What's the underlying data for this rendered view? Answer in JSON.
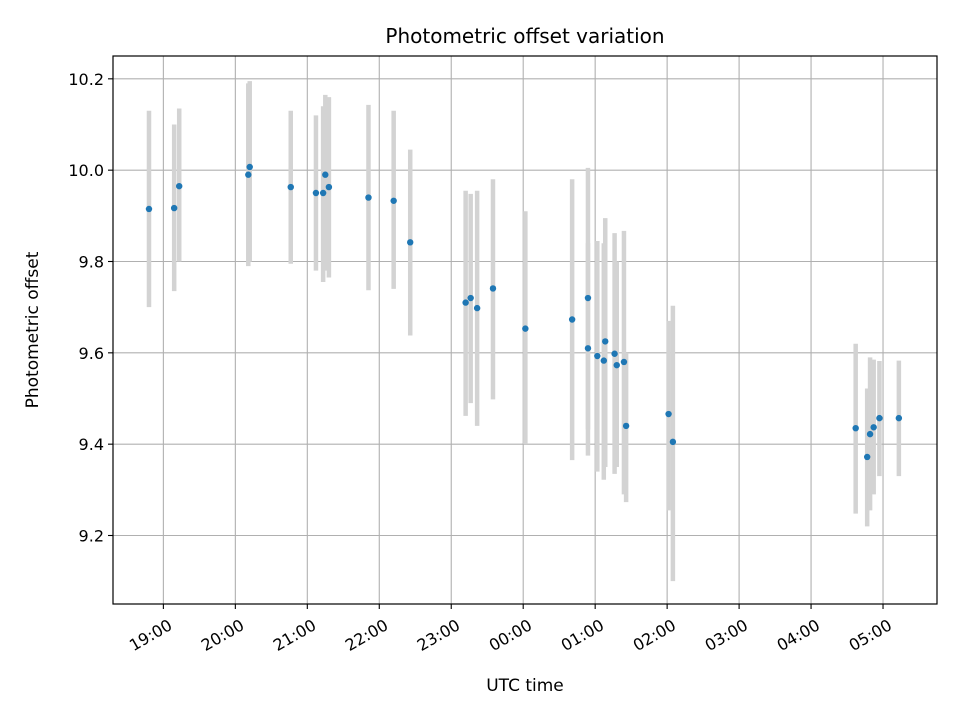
{
  "chart_data": {
    "type": "scatter",
    "title": "Photometric offset variation",
    "xlabel": "UTC time",
    "ylabel": "Photometric offset",
    "grid": true,
    "x_unit": "UTC time (hours after 19:00 on first night)",
    "xlim_hours": [
      -0.7,
      10.75
    ],
    "ylim": [
      9.05,
      10.25
    ],
    "x_ticks": [
      {
        "t": 0,
        "label": "19:00"
      },
      {
        "t": 1,
        "label": "20:00"
      },
      {
        "t": 2,
        "label": "21:00"
      },
      {
        "t": 3,
        "label": "22:00"
      },
      {
        "t": 4,
        "label": "23:00"
      },
      {
        "t": 5,
        "label": "00:00"
      },
      {
        "t": 6,
        "label": "01:00"
      },
      {
        "t": 7,
        "label": "02:00"
      },
      {
        "t": 8,
        "label": "03:00"
      },
      {
        "t": 9,
        "label": "04:00"
      },
      {
        "t": 10,
        "label": "05:00"
      }
    ],
    "y_ticks": [
      {
        "v": 9.2,
        "label": "9.2"
      },
      {
        "v": 9.4,
        "label": "9.4"
      },
      {
        "v": 9.6,
        "label": "9.6"
      },
      {
        "v": 9.8,
        "label": "9.8"
      },
      {
        "v": 10.0,
        "label": "10.0"
      },
      {
        "v": 10.2,
        "label": "10.2"
      }
    ],
    "colors": {
      "point": "#1f77b4",
      "errorbar": "#d3d3d3",
      "grid": "#b0b0b0",
      "axes": "#000000"
    },
    "points": [
      {
        "t": -0.2,
        "y": 9.915,
        "lo": 9.7,
        "hi": 10.13
      },
      {
        "t": 0.15,
        "y": 9.917,
        "lo": 9.735,
        "hi": 10.1
      },
      {
        "t": 0.22,
        "y": 9.965,
        "lo": 9.8,
        "hi": 10.135
      },
      {
        "t": 1.18,
        "y": 9.99,
        "lo": 9.79,
        "hi": 10.19
      },
      {
        "t": 1.2,
        "y": 10.007,
        "lo": 9.8,
        "hi": 10.195
      },
      {
        "t": 1.77,
        "y": 9.963,
        "lo": 9.795,
        "hi": 10.13
      },
      {
        "t": 2.12,
        "y": 9.95,
        "lo": 9.78,
        "hi": 10.12
      },
      {
        "t": 2.22,
        "y": 9.95,
        "lo": 9.755,
        "hi": 10.14
      },
      {
        "t": 2.25,
        "y": 9.99,
        "lo": 9.78,
        "hi": 10.165
      },
      {
        "t": 2.3,
        "y": 9.963,
        "lo": 9.765,
        "hi": 10.16
      },
      {
        "t": 2.85,
        "y": 9.94,
        "lo": 9.737,
        "hi": 10.143
      },
      {
        "t": 3.2,
        "y": 9.933,
        "lo": 9.74,
        "hi": 10.13
      },
      {
        "t": 3.43,
        "y": 9.842,
        "lo": 9.638,
        "hi": 10.045
      },
      {
        "t": 4.2,
        "y": 9.71,
        "lo": 9.462,
        "hi": 9.955
      },
      {
        "t": 4.27,
        "y": 9.72,
        "lo": 9.49,
        "hi": 9.948
      },
      {
        "t": 4.36,
        "y": 9.698,
        "lo": 9.44,
        "hi": 9.955
      },
      {
        "t": 4.58,
        "y": 9.741,
        "lo": 9.498,
        "hi": 9.98
      },
      {
        "t": 5.03,
        "y": 9.653,
        "lo": 9.4,
        "hi": 9.91
      },
      {
        "t": 5.68,
        "y": 9.673,
        "lo": 9.365,
        "hi": 9.98
      },
      {
        "t": 5.9,
        "y": 9.72,
        "lo": 9.432,
        "hi": 10.005
      },
      {
        "t": 5.9,
        "y": 9.61,
        "lo": 9.375,
        "hi": 9.84
      },
      {
        "t": 6.03,
        "y": 9.593,
        "lo": 9.34,
        "hi": 9.845
      },
      {
        "t": 6.12,
        "y": 9.583,
        "lo": 9.322,
        "hi": 9.84
      },
      {
        "t": 6.14,
        "y": 9.625,
        "lo": 9.35,
        "hi": 9.895
      },
      {
        "t": 6.27,
        "y": 9.598,
        "lo": 9.335,
        "hi": 9.862
      },
      {
        "t": 6.3,
        "y": 9.573,
        "lo": 9.35,
        "hi": 9.8
      },
      {
        "t": 6.4,
        "y": 9.58,
        "lo": 9.29,
        "hi": 9.867
      },
      {
        "t": 6.43,
        "y": 9.44,
        "lo": 9.273,
        "hi": 9.6
      },
      {
        "t": 7.02,
        "y": 9.466,
        "lo": 9.255,
        "hi": 9.67
      },
      {
        "t": 7.08,
        "y": 9.405,
        "lo": 9.1,
        "hi": 9.703
      },
      {
        "t": 9.62,
        "y": 9.435,
        "lo": 9.248,
        "hi": 9.62
      },
      {
        "t": 9.78,
        "y": 9.372,
        "lo": 9.22,
        "hi": 9.522
      },
      {
        "t": 9.82,
        "y": 9.422,
        "lo": 9.255,
        "hi": 9.59
      },
      {
        "t": 9.87,
        "y": 9.437,
        "lo": 9.29,
        "hi": 9.585
      },
      {
        "t": 9.95,
        "y": 9.457,
        "lo": 9.33,
        "hi": 9.582
      },
      {
        "t": 10.22,
        "y": 9.457,
        "lo": 9.33,
        "hi": 9.583
      }
    ]
  }
}
